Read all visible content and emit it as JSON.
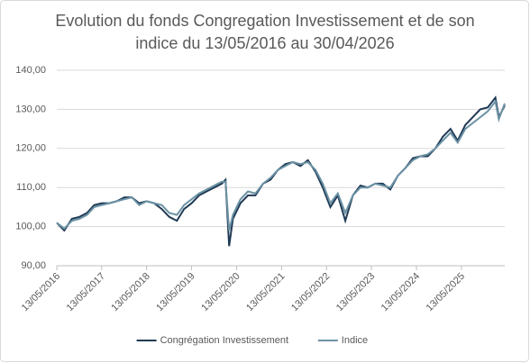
{
  "chart_data": {
    "type": "line",
    "title": [
      "Evolution du fonds Congregation Investissement et de son",
      "indice du 13/05/2016 au 30/04/2026"
    ],
    "x": [
      "13/05/2016",
      "13/07/2016",
      "13/09/2016",
      "13/11/2016",
      "13/01/2017",
      "13/03/2017",
      "13/05/2017",
      "13/07/2017",
      "13/09/2017",
      "13/11/2017",
      "13/01/2018",
      "13/03/2018",
      "13/05/2018",
      "13/07/2018",
      "13/09/2018",
      "13/11/2018",
      "13/01/2019",
      "13/03/2019",
      "13/05/2019",
      "13/07/2019",
      "13/09/2019",
      "13/11/2019",
      "13/01/2020",
      "13/02/2020",
      "13/03/2020",
      "13/04/2020",
      "13/06/2020",
      "13/08/2020",
      "13/10/2020",
      "13/12/2020",
      "13/02/2021",
      "13/04/2021",
      "13/06/2021",
      "13/08/2021",
      "13/10/2021",
      "13/12/2021",
      "13/02/2022",
      "13/04/2022",
      "13/06/2022",
      "13/08/2022",
      "13/10/2022",
      "13/12/2022",
      "13/02/2023",
      "13/04/2023",
      "13/06/2023",
      "13/08/2023",
      "13/10/2023",
      "13/12/2023",
      "13/02/2024",
      "13/04/2024",
      "13/06/2024",
      "13/08/2024",
      "13/10/2024",
      "13/12/2024",
      "13/02/2025",
      "13/04/2025",
      "13/06/2025",
      "13/08/2025",
      "13/10/2025",
      "13/12/2025",
      "13/02/2026",
      "13/03/2026",
      "30/04/2026"
    ],
    "series": [
      {
        "name": "Congrégation Investissement",
        "color": "#203a55",
        "values": [
          101,
          99,
          102,
          102.5,
          103.5,
          105.5,
          106,
          106,
          106.5,
          107.5,
          107.5,
          106,
          106.5,
          106,
          104.5,
          102.5,
          101.5,
          104.5,
          106,
          108,
          109,
          110,
          111,
          112,
          95,
          102,
          106,
          108,
          108,
          111,
          112,
          114.5,
          116,
          116.5,
          115.5,
          117,
          114,
          110,
          105,
          108,
          101.5,
          108,
          110.5,
          110,
          111,
          111,
          109.5,
          113,
          115,
          117.5,
          118,
          118,
          120,
          123,
          125,
          122,
          126,
          128,
          130,
          130.5,
          133,
          128,
          131
        ]
      },
      {
        "name": "Indice",
        "color": "#6b92a4",
        "values": [
          101,
          99.5,
          101.5,
          102,
          103,
          105,
          105.5,
          106,
          106.5,
          107,
          107.5,
          105.5,
          106.5,
          106,
          105.5,
          103.5,
          103,
          105.5,
          107,
          108.5,
          109.5,
          110.5,
          111.5,
          111.5,
          99,
          103,
          107,
          109,
          108.5,
          111,
          112.5,
          114.5,
          115.5,
          116.5,
          116,
          116.5,
          114.5,
          111,
          106,
          108.5,
          103.5,
          108,
          110,
          110,
          111,
          110.5,
          110,
          113,
          115,
          117,
          118,
          118.5,
          120,
          122,
          124,
          121.5,
          125,
          126.5,
          128,
          129.5,
          132,
          127.5,
          131.5
        ]
      }
    ],
    "xlim": [
      "13/05/2016",
      "30/04/2026"
    ],
    "xticks": [
      "13/05/2016",
      "13/05/2017",
      "13/05/2018",
      "13/05/2019",
      "13/05/2020",
      "13/05/2021",
      "13/05/2022",
      "13/05/2023",
      "13/05/2024",
      "13/05/2025"
    ],
    "ylim": [
      90,
      140
    ],
    "yticks": [
      {
        "value": 90,
        "label": "90,00"
      },
      {
        "value": 100,
        "label": "100,00"
      },
      {
        "value": 110,
        "label": "110,00"
      },
      {
        "value": 120,
        "label": "120,00"
      },
      {
        "value": 130,
        "label": "130,00"
      },
      {
        "value": 140,
        "label": "140,00"
      }
    ],
    "grid": true,
    "legend": "bottom"
  }
}
